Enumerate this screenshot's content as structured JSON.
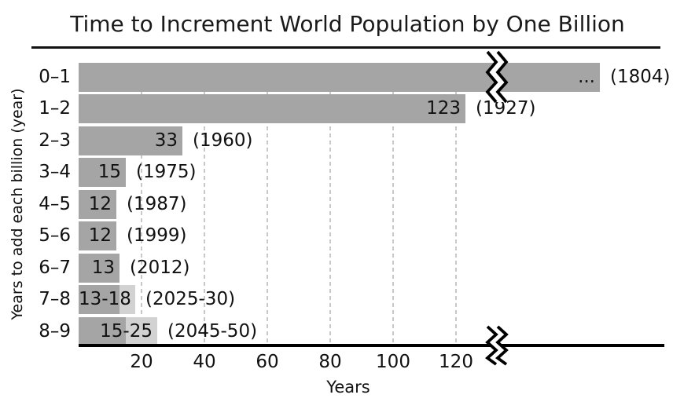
{
  "chart": {
    "title": "Time to Increment World Population by One Billion",
    "xlabel": "Years",
    "ylabel": "Years to add each billion (year)"
  },
  "chart_data": {
    "type": "bar",
    "orientation": "horizontal",
    "title": "Time to Increment World Population by One Billion",
    "xlabel": "Years",
    "ylabel": "Years to add each billion (year)",
    "x_ticks": [
      20,
      40,
      60,
      80,
      100,
      120
    ],
    "xlim": [
      0,
      130
    ],
    "axis_break": true,
    "axis_break_note": "axis broken after ~130 years; first bar exceeds the scale",
    "grid": "dashed vertical gridlines at each x tick",
    "legend": "none",
    "categories": [
      "0–1",
      "1–2",
      "2–3",
      "3–4",
      "4–5",
      "5–6",
      "6–7",
      "7–8",
      "8–9"
    ],
    "rows": [
      {
        "category": "0–1",
        "value_label": "...",
        "year_label": "(1804)",
        "broken": true
      },
      {
        "category": "1–2",
        "value": 123,
        "value_label": "123",
        "year_label": "(1927)"
      },
      {
        "category": "2–3",
        "value": 33,
        "value_label": "33",
        "year_label": "(1960)"
      },
      {
        "category": "3–4",
        "value": 15,
        "value_label": "15",
        "year_label": "(1975)"
      },
      {
        "category": "4–5",
        "value": 12,
        "value_label": "12",
        "year_label": "(1987)"
      },
      {
        "category": "5–6",
        "value": 12,
        "value_label": "12",
        "year_label": "(1999)"
      },
      {
        "category": "6–7",
        "value": 13,
        "value_label": "13",
        "year_label": "(2012)"
      },
      {
        "category": "7–8",
        "value": 13,
        "value_max": 18,
        "value_label": "13-18",
        "year_label": "(2025-30)"
      },
      {
        "category": "8–9",
        "value": 15,
        "value_max": 25,
        "value_label": "15-25",
        "year_label": "(2045-50)"
      }
    ],
    "colors": {
      "bar": "#a5a5a5",
      "bar_range": "#d2d2d2",
      "grid": "#c8c8c8",
      "axis": "#000000",
      "text": "#111111"
    }
  }
}
